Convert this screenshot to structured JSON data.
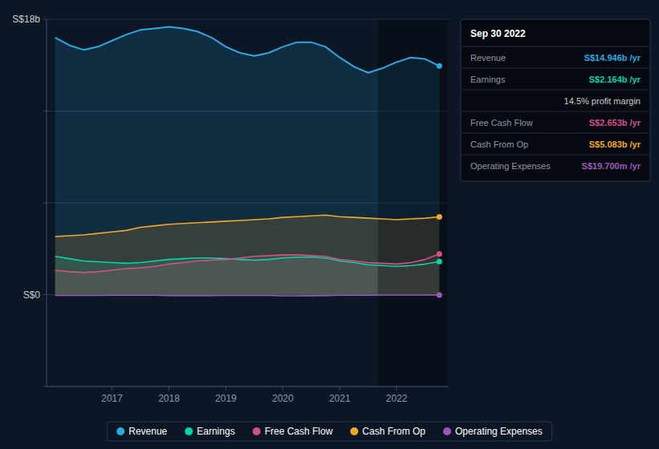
{
  "chart_data": {
    "type": "area",
    "x": [
      2016.0,
      2016.25,
      2016.5,
      2016.75,
      2017.0,
      2017.25,
      2017.5,
      2017.75,
      2018.0,
      2018.25,
      2018.5,
      2018.75,
      2019.0,
      2019.25,
      2019.5,
      2019.75,
      2020.0,
      2020.25,
      2020.5,
      2020.75,
      2021.0,
      2021.25,
      2021.5,
      2021.75,
      2022.0,
      2022.25,
      2022.5,
      2022.75
    ],
    "xlim": [
      2015.85,
      2022.9
    ],
    "xticks": [
      2017,
      2018,
      2019,
      2020,
      2021,
      2022
    ],
    "ylim": [
      -6,
      18
    ],
    "yticks": [
      -6,
      0,
      6,
      12,
      18
    ],
    "grid": true,
    "tick_labels": "x",
    "legend": "bottom",
    "annotations": [
      {
        "text": "S$18b",
        "y": 18
      },
      {
        "text": "S$0",
        "y": 0
      }
    ],
    "shaded_region": [
      2021.67,
      2022.9
    ],
    "info_box": {
      "title": "Sep 30 2022",
      "rows": [
        {
          "label": "Revenue",
          "value": "S$14.946b /yr",
          "color": "#29abe2"
        },
        {
          "label": "Earnings",
          "value": "S$2.164b /yr",
          "color": "#00d4aa"
        },
        {
          "value": "14.5% profit margin",
          "color": "#cccccc"
        },
        {
          "label": "Free Cash Flow",
          "value": "S$2.653b /yr",
          "color": "#d45087"
        },
        {
          "label": "Cash From Op",
          "value": "S$5.083b /yr",
          "color": "#f5a623"
        },
        {
          "label": "Operating Expenses",
          "value": "S$19.700m /yr",
          "color": "#9b59b6"
        }
      ]
    },
    "series": [
      {
        "name": "Revenue",
        "color": "#29abe2",
        "type": "area",
        "values": [
          16.8,
          16.3,
          16.0,
          16.2,
          16.6,
          17.0,
          17.3,
          17.4,
          17.5,
          17.4,
          17.2,
          16.8,
          16.2,
          15.8,
          15.6,
          15.8,
          16.2,
          16.5,
          16.5,
          16.2,
          15.5,
          14.9,
          14.5,
          14.8,
          15.2,
          15.5,
          15.4,
          14.946
        ]
      },
      {
        "name": "Earnings",
        "color": "#00d4aa",
        "type": "area",
        "values": [
          2.5,
          2.35,
          2.2,
          2.15,
          2.1,
          2.05,
          2.1,
          2.2,
          2.3,
          2.35,
          2.4,
          2.4,
          2.35,
          2.3,
          2.25,
          2.3,
          2.4,
          2.45,
          2.45,
          2.4,
          2.2,
          2.1,
          1.95,
          1.9,
          1.85,
          1.9,
          2.0,
          2.164
        ]
      },
      {
        "name": "Free Cash Flow",
        "color": "#d45087",
        "type": "area",
        "values": [
          1.6,
          1.5,
          1.45,
          1.5,
          1.6,
          1.7,
          1.75,
          1.85,
          2.0,
          2.1,
          2.2,
          2.25,
          2.3,
          2.4,
          2.5,
          2.55,
          2.6,
          2.6,
          2.55,
          2.5,
          2.3,
          2.2,
          2.1,
          2.05,
          2.0,
          2.1,
          2.3,
          2.653
        ]
      },
      {
        "name": "Cash From Op",
        "color": "#f5a623",
        "type": "area",
        "values": [
          3.8,
          3.85,
          3.9,
          4.0,
          4.1,
          4.2,
          4.4,
          4.5,
          4.6,
          4.65,
          4.7,
          4.75,
          4.8,
          4.85,
          4.9,
          4.95,
          5.05,
          5.1,
          5.15,
          5.2,
          5.1,
          5.05,
          5.0,
          4.95,
          4.9,
          4.95,
          5.0,
          5.083
        ]
      },
      {
        "name": "Operating Expenses",
        "color": "#9b59b6",
        "type": "line",
        "values": [
          -0.05,
          -0.05,
          -0.05,
          -0.05,
          -0.04,
          -0.04,
          -0.04,
          -0.04,
          -0.06,
          -0.06,
          -0.06,
          -0.06,
          -0.05,
          -0.05,
          -0.05,
          -0.05,
          -0.08,
          -0.08,
          -0.07,
          -0.06,
          -0.04,
          -0.04,
          -0.04,
          -0.03,
          -0.03,
          -0.03,
          -0.03,
          -0.0197
        ]
      }
    ]
  }
}
